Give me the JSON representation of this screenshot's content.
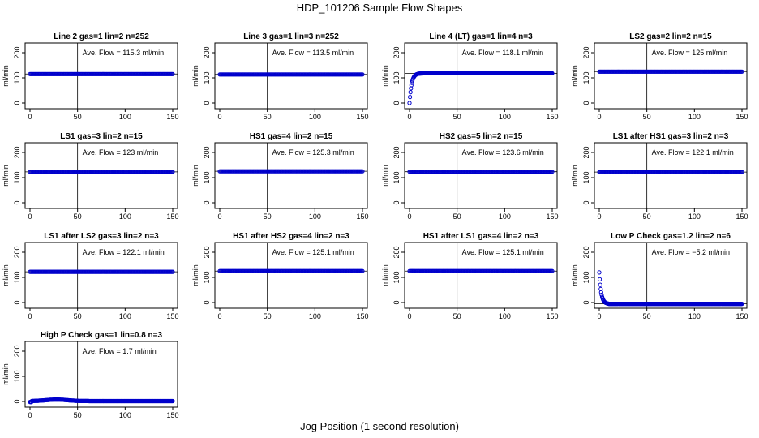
{
  "figure": {
    "title": "HDP_101206  Sample Flow Shapes",
    "xlabel": "Jog Position (1 second resolution)",
    "marker_color": "#0000cc"
  },
  "chart_data": [
    {
      "type": "scatter",
      "title": "Line 2 gas=1 lin=2 n=252",
      "shape": "flat",
      "avg": 115.3,
      "annotation": "Ave. Flow =  115.3  ml/min",
      "ylabel": "ml/min",
      "xlim": [
        0,
        150
      ],
      "ylim": [
        0,
        200
      ],
      "xticks": [
        0,
        50,
        100,
        150
      ],
      "yticks": [
        0,
        100,
        200
      ],
      "vline": 50
    },
    {
      "type": "scatter",
      "title": "Line 3 gas=1 lin=3 n=252",
      "shape": "flat",
      "avg": 113.5,
      "annotation": "Ave. Flow =  113.5  ml/min",
      "ylabel": "ml/min",
      "xlim": [
        0,
        150
      ],
      "ylim": [
        0,
        200
      ],
      "xticks": [
        0,
        50,
        100,
        150
      ],
      "yticks": [
        0,
        100,
        200
      ],
      "vline": 50
    },
    {
      "type": "scatter",
      "title": "Line 4 (LT) gas=1 lin=4 n=3",
      "shape": "rise",
      "avg": 118.1,
      "annotation": "Ave. Flow =  118.1  ml/min",
      "ylabel": "ml/min",
      "xlim": [
        0,
        150
      ],
      "ylim": [
        0,
        200
      ],
      "xticks": [
        0,
        50,
        100,
        150
      ],
      "yticks": [
        0,
        100,
        200
      ],
      "vline": 50
    },
    {
      "type": "scatter",
      "title": "LS2 gas=2 lin=2 n=15",
      "shape": "flat",
      "avg": 125,
      "annotation": "Ave. Flow =  125  ml/min",
      "ylabel": "ml/min",
      "xlim": [
        0,
        150
      ],
      "ylim": [
        0,
        200
      ],
      "xticks": [
        0,
        50,
        100,
        150
      ],
      "yticks": [
        0,
        100,
        200
      ],
      "vline": 50
    },
    {
      "type": "scatter",
      "title": "LS1 gas=3 lin=2 n=15",
      "shape": "flat",
      "avg": 123,
      "annotation": "Ave. Flow =  123  ml/min",
      "ylabel": "ml/min",
      "xlim": [
        0,
        150
      ],
      "ylim": [
        0,
        200
      ],
      "xticks": [
        0,
        50,
        100,
        150
      ],
      "yticks": [
        0,
        100,
        200
      ],
      "vline": 50
    },
    {
      "type": "scatter",
      "title": "HS1 gas=4 lin=2 n=15",
      "shape": "flat",
      "avg": 125.3,
      "annotation": "Ave. Flow =  125.3  ml/min",
      "ylabel": "ml/min",
      "xlim": [
        0,
        150
      ],
      "ylim": [
        0,
        200
      ],
      "xticks": [
        0,
        50,
        100,
        150
      ],
      "yticks": [
        0,
        100,
        200
      ],
      "vline": 50
    },
    {
      "type": "scatter",
      "title": "HS2 gas=5 lin=2 n=15",
      "shape": "flat",
      "avg": 123.6,
      "annotation": "Ave. Flow =  123.6  ml/min",
      "ylabel": "ml/min",
      "xlim": [
        0,
        150
      ],
      "ylim": [
        0,
        200
      ],
      "xticks": [
        0,
        50,
        100,
        150
      ],
      "yticks": [
        0,
        100,
        200
      ],
      "vline": 50
    },
    {
      "type": "scatter",
      "title": "LS1 after HS1 gas=3 lin=2 n=3",
      "shape": "flat",
      "avg": 122.1,
      "annotation": "Ave. Flow =  122.1  ml/min",
      "ylabel": "ml/min",
      "xlim": [
        0,
        150
      ],
      "ylim": [
        0,
        200
      ],
      "xticks": [
        0,
        50,
        100,
        150
      ],
      "yticks": [
        0,
        100,
        200
      ],
      "vline": 50
    },
    {
      "type": "scatter",
      "title": "LS1 after LS2 gas=3 lin=2 n=3",
      "shape": "flat",
      "avg": 122.1,
      "annotation": "Ave. Flow =  122.1  ml/min",
      "ylabel": "ml/min",
      "xlim": [
        0,
        150
      ],
      "ylim": [
        0,
        200
      ],
      "xticks": [
        0,
        50,
        100,
        150
      ],
      "yticks": [
        0,
        100,
        200
      ],
      "vline": 50
    },
    {
      "type": "scatter",
      "title": "HS1 after HS2 gas=4 lin=2 n=3",
      "shape": "flat",
      "avg": 125.1,
      "annotation": "Ave. Flow =  125.1  ml/min",
      "ylabel": "ml/min",
      "xlim": [
        0,
        150
      ],
      "ylim": [
        0,
        200
      ],
      "xticks": [
        0,
        50,
        100,
        150
      ],
      "yticks": [
        0,
        100,
        200
      ],
      "vline": 50
    },
    {
      "type": "scatter",
      "title": "HS1 after LS1 gas=4 lin=2 n=3",
      "shape": "flat",
      "avg": 125.1,
      "annotation": "Ave. Flow =  125.1  ml/min",
      "ylabel": "ml/min",
      "xlim": [
        0,
        150
      ],
      "ylim": [
        0,
        200
      ],
      "xticks": [
        0,
        50,
        100,
        150
      ],
      "yticks": [
        0,
        100,
        200
      ],
      "vline": 50
    },
    {
      "type": "scatter",
      "title": "Low P Check gas=1.2 lin=2 n=6",
      "shape": "decay",
      "avg": -5.2,
      "annotation": "Ave. Flow =  −5.2  ml/min",
      "ylabel": "ml/min",
      "xlim": [
        0,
        150
      ],
      "ylim": [
        0,
        200
      ],
      "xticks": [
        0,
        50,
        100,
        150
      ],
      "yticks": [
        0,
        100,
        200
      ],
      "vline": 50
    },
    {
      "type": "scatter",
      "title": "High P Check gas=1 lin=0.8 n=3",
      "shape": "bump",
      "avg": 1.7,
      "annotation": "Ave. Flow =  1.7  ml/min",
      "ylabel": "ml/min",
      "xlim": [
        0,
        150
      ],
      "ylim": [
        0,
        200
      ],
      "xticks": [
        0,
        50,
        100,
        150
      ],
      "yticks": [
        0,
        100,
        200
      ],
      "vline": 50
    }
  ]
}
